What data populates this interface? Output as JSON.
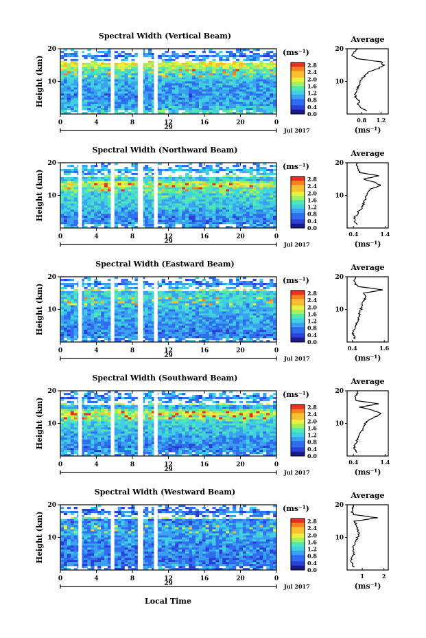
{
  "figure": {
    "date_label": "Jul 2017",
    "xlabel": "Local Time",
    "day_label": "29",
    "x_ticks": [
      "0",
      "4",
      "8",
      "12",
      "16",
      "20",
      "0"
    ],
    "y_ticks": [
      "20",
      "10"
    ],
    "colorbar_unit": "(ms⁻¹)",
    "colorbar_ticks": [
      "2.8",
      "2.4",
      "2.0",
      "1.6",
      "1.2",
      "0.8",
      "0.4",
      "0.0"
    ],
    "avg_title": "Average",
    "avg_unit": "(ms⁻¹)",
    "ylabel": "Height (km)",
    "colors": {
      "scale": [
        "#1a1a8c",
        "#2a3ed8",
        "#2f6cf0",
        "#3aa0f0",
        "#40d0e0",
        "#50e8b0",
        "#a0f060",
        "#e8f040",
        "#f8c030",
        "#f88020",
        "#e83020"
      ]
    }
  },
  "chart_data": [
    {
      "type": "heatmap",
      "title": "Spectral Width (Vertical Beam)",
      "xlabel": "Local Time",
      "ylabel": "Height (km)",
      "xlim": [
        0,
        24
      ],
      "ylim": [
        0,
        20
      ],
      "colorbar_range": [
        0.0,
        3.0
      ],
      "data_gaps_hours": [
        [
          2.0,
          2.4
        ],
        [
          5.6,
          6.0
        ],
        [
          8.6,
          9.2
        ],
        [
          10.4,
          10.8
        ]
      ],
      "profile": {
        "title": "Average",
        "xticks": [
          "0.8",
          "1.2"
        ],
        "xlim": [
          0.5,
          1.35
        ],
        "height": [
          1,
          2,
          3,
          4,
          5,
          6,
          7,
          8,
          9,
          10,
          11,
          12,
          13,
          14,
          15,
          16,
          17,
          18,
          19,
          20
        ],
        "value": [
          0.9,
          0.78,
          0.72,
          0.75,
          0.68,
          0.66,
          0.7,
          0.72,
          0.75,
          0.76,
          0.82,
          0.88,
          0.95,
          1.15,
          1.25,
          1.2,
          0.7,
          0.6,
          0.65,
          0.72
        ]
      }
    },
    {
      "type": "heatmap",
      "title": "Spectral Width (Northward Beam)",
      "xlabel": "Local Time",
      "ylabel": "Height (km)",
      "xlim": [
        0,
        24
      ],
      "ylim": [
        0,
        20
      ],
      "colorbar_range": [
        0.0,
        3.0
      ],
      "data_gaps_hours": [
        [
          2.0,
          2.4
        ],
        [
          5.6,
          6.0
        ],
        [
          8.6,
          9.2
        ],
        [
          10.4,
          10.8
        ]
      ],
      "profile": {
        "title": "Average",
        "xticks": [
          "0.4",
          "1.4"
        ],
        "xlim": [
          0.2,
          1.5
        ],
        "height": [
          1,
          2,
          3,
          4,
          5,
          6,
          7,
          8,
          9,
          10,
          11,
          12,
          13,
          14,
          15,
          16,
          17,
          18,
          19,
          20
        ],
        "value": [
          0.5,
          0.45,
          0.42,
          0.5,
          0.55,
          0.65,
          0.7,
          0.75,
          0.78,
          0.82,
          0.88,
          0.95,
          1.25,
          1.1,
          0.7,
          1.2,
          0.6,
          0.55,
          0.5,
          0.55
        ]
      }
    },
    {
      "type": "heatmap",
      "title": "Spectral Width (Eastward Beam)",
      "xlabel": "Local Time",
      "ylabel": "Height (km)",
      "xlim": [
        0,
        24
      ],
      "ylim": [
        0,
        20
      ],
      "colorbar_range": [
        0.0,
        3.0
      ],
      "data_gaps_hours": [
        [
          2.0,
          2.4
        ],
        [
          5.6,
          6.0
        ],
        [
          8.6,
          9.2
        ],
        [
          10.4,
          10.8
        ]
      ],
      "profile": {
        "title": "Average",
        "xticks": [
          "0.4",
          "1.6"
        ],
        "xlim": [
          0.2,
          1.75
        ],
        "height": [
          1,
          2,
          3,
          4,
          5,
          6,
          7,
          8,
          9,
          10,
          11,
          12,
          13,
          14,
          15,
          16,
          17,
          18,
          19,
          20
        ],
        "value": [
          0.5,
          0.45,
          0.42,
          0.48,
          0.5,
          0.58,
          0.62,
          0.65,
          0.68,
          0.72,
          0.75,
          0.8,
          0.85,
          0.9,
          0.85,
          1.55,
          0.6,
          0.5,
          0.48,
          0.52
        ]
      }
    },
    {
      "type": "heatmap",
      "title": "Spectral Width (Southward Beam)",
      "xlabel": "Local Time",
      "ylabel": "Height (km)",
      "xlim": [
        0,
        24
      ],
      "ylim": [
        0,
        20
      ],
      "colorbar_range": [
        0.0,
        3.0
      ],
      "data_gaps_hours": [
        [
          2.0,
          2.4
        ],
        [
          5.6,
          6.0
        ],
        [
          8.6,
          9.2
        ],
        [
          10.4,
          10.8
        ]
      ],
      "profile": {
        "title": "Average",
        "xticks": [
          "0.4",
          "1.4"
        ],
        "xlim": [
          0.2,
          1.5
        ],
        "height": [
          1,
          2,
          3,
          4,
          5,
          6,
          7,
          8,
          9,
          10,
          11,
          12,
          13,
          14,
          15,
          16,
          17,
          18,
          19,
          20
        ],
        "value": [
          0.5,
          0.45,
          0.42,
          0.48,
          0.52,
          0.58,
          0.62,
          0.68,
          0.72,
          0.78,
          0.88,
          1.1,
          1.3,
          1.0,
          0.6,
          1.2,
          0.5,
          0.45,
          0.5,
          0.55
        ]
      }
    },
    {
      "type": "heatmap",
      "title": "Spectral Width (Westward Beam)",
      "xlabel": "Local Time",
      "ylabel": "Height (km)",
      "xlim": [
        0,
        24
      ],
      "ylim": [
        0,
        20
      ],
      "colorbar_range": [
        0.0,
        3.0
      ],
      "data_gaps_hours": [
        [
          2.0,
          2.4
        ],
        [
          5.6,
          6.0
        ],
        [
          8.6,
          9.2
        ],
        [
          10.4,
          10.8
        ]
      ],
      "profile": {
        "title": "Average",
        "xticks": [
          "1",
          "2"
        ],
        "xlim": [
          0.3,
          2.2
        ],
        "height": [
          1,
          2,
          3,
          4,
          5,
          6,
          7,
          8,
          9,
          10,
          11,
          12,
          13,
          14,
          15,
          16,
          17,
          18,
          19,
          20
        ],
        "value": [
          0.6,
          0.55,
          0.5,
          0.55,
          0.62,
          0.6,
          0.58,
          0.65,
          0.7,
          0.78,
          0.85,
          0.8,
          0.75,
          0.7,
          0.65,
          1.7,
          0.6,
          0.5,
          0.55,
          0.6
        ]
      }
    }
  ]
}
